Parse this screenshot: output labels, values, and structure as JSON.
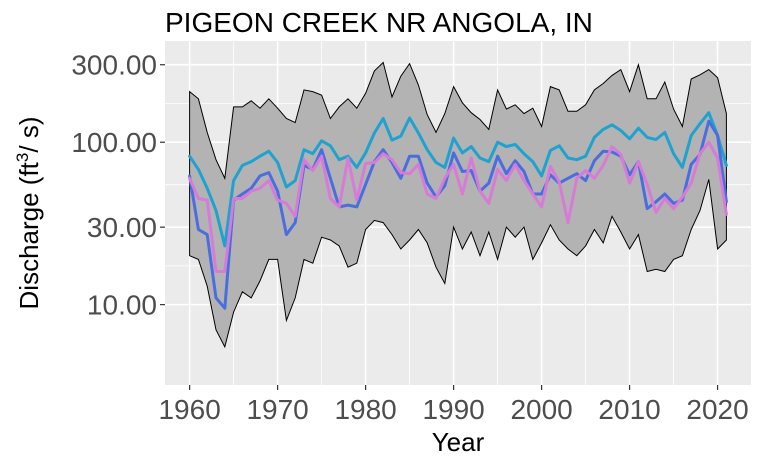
{
  "chart_data": {
    "type": "line",
    "title": "PIGEON CREEK NR ANGOLA, IN",
    "xlabel": "Year",
    "ylabel": {
      "prefix": "Discharge (ft",
      "sup": "3",
      "suffix": "/ s)"
    },
    "xlim": [
      1957.2,
      2023.8
    ],
    "ylim": [
      3.2,
      420
    ],
    "y_scale": "log",
    "x_ticks": [
      1960,
      1970,
      1980,
      1990,
      2000,
      2010,
      2020
    ],
    "x_tick_labels": [
      "1960",
      "1970",
      "1980",
      "1990",
      "2000",
      "2010",
      "2020"
    ],
    "y_ticks": [
      10,
      30,
      100,
      300
    ],
    "y_tick_labels": [
      "10.00",
      "30.00",
      "100.00",
      "300.00"
    ],
    "grid": true,
    "background": "#ebebeb",
    "x": [
      1960,
      1961,
      1962,
      1963,
      1964,
      1965,
      1966,
      1967,
      1968,
      1969,
      1970,
      1971,
      1972,
      1973,
      1974,
      1975,
      1976,
      1977,
      1978,
      1979,
      1980,
      1981,
      1982,
      1983,
      1984,
      1985,
      1986,
      1987,
      1988,
      1989,
      1990,
      1991,
      1992,
      1993,
      1994,
      1995,
      1996,
      1997,
      1998,
      1999,
      2000,
      2001,
      2002,
      2003,
      2004,
      2005,
      2006,
      2007,
      2008,
      2009,
      2010,
      2011,
      2012,
      2013,
      2014,
      2015,
      2016,
      2017,
      2018,
      2019,
      2020,
      2021
    ],
    "band": {
      "color": "#b3b3b3",
      "upper": [
        205,
        185,
        115,
        78,
        60,
        165,
        165,
        180,
        162,
        185,
        162,
        140,
        132,
        210,
        205,
        195,
        140,
        165,
        185,
        162,
        200,
        275,
        310,
        190,
        255,
        305,
        225,
        148,
        115,
        150,
        220,
        175,
        152,
        138,
        120,
        210,
        160,
        170,
        150,
        162,
        125,
        220,
        210,
        155,
        155,
        170,
        210,
        230,
        258,
        280,
        205,
        300,
        185,
        185,
        235,
        160,
        125,
        245,
        260,
        280,
        250,
        150
      ],
      "lower": [
        20,
        19,
        13,
        7,
        5.5,
        9,
        12,
        11,
        14,
        19,
        19,
        8,
        11,
        19,
        18,
        26,
        25,
        23,
        17,
        18,
        29,
        33,
        32,
        27,
        22,
        25,
        29,
        24,
        17,
        13.5,
        30,
        22,
        28,
        20,
        28,
        19,
        30,
        26,
        30,
        19,
        24,
        31,
        25,
        22,
        20,
        23,
        29,
        24,
        35,
        28,
        22,
        27,
        16,
        16.5,
        16,
        19,
        20,
        29,
        38,
        59,
        22,
        25
      ]
    },
    "series": [
      {
        "color": "#1fa2cf",
        "values": [
          82,
          68,
          52,
          38,
          23,
          58,
          72,
          76,
          82,
          88,
          75,
          53,
          58,
          90,
          85,
          102,
          95,
          78,
          82,
          70,
          86,
          114,
          140,
          103,
          109,
          141,
          114,
          90,
          75,
          70,
          106,
          86,
          94,
          80,
          76,
          100,
          94,
          97,
          85,
          76,
          62,
          89,
          95,
          80,
          78,
          82,
          107,
          120,
          128,
          118,
          105,
          122,
          107,
          104,
          115,
          85,
          70,
          110,
          130,
          152,
          110,
          72
        ]
      },
      {
        "color": "#4a6ee0",
        "values": [
          62,
          29,
          27,
          11,
          9.5,
          44,
          48,
          52,
          62,
          65,
          50,
          27,
          32,
          72,
          68,
          90,
          60,
          40,
          41,
          40,
          55,
          76,
          90,
          75,
          60,
          82,
          82,
          56,
          46,
          54,
          86,
          66,
          67,
          50,
          56,
          82,
          64,
          77,
          66,
          48,
          48,
          63,
          56,
          60,
          64,
          58,
          77,
          88,
          87,
          82,
          63,
          76,
          39,
          43,
          48,
          42,
          44,
          73,
          84,
          135,
          110,
          43
        ]
      },
      {
        "color": "#d87ad8",
        "values": [
          60,
          45,
          44,
          16,
          16,
          45,
          45,
          50,
          52,
          58,
          44,
          42,
          35,
          78,
          67,
          82,
          45,
          40,
          80,
          44,
          74,
          75,
          85,
          78,
          65,
          64,
          73,
          48,
          45,
          60,
          73,
          48,
          80,
          50,
          42,
          68,
          58,
          73,
          58,
          48,
          40,
          71,
          57,
          32,
          60,
          67,
          60,
          72,
          94,
          84,
          56,
          76,
          55,
          37,
          45,
          39,
          46,
          56,
          85,
          100,
          80,
          36
        ]
      }
    ]
  }
}
